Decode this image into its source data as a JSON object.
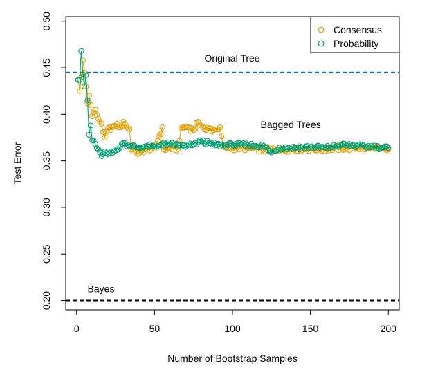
{
  "chart_data": {
    "type": "line",
    "title": "",
    "xlabel": "Number of Bootstrap Samples",
    "ylabel": "Test Error",
    "xlim": [
      -7,
      207
    ],
    "ylim": [
      0.19,
      0.505
    ],
    "x_ticks": [
      0,
      50,
      100,
      150,
      200
    ],
    "y_ticks": [
      0.2,
      0.25,
      0.3,
      0.35,
      0.4,
      0.45,
      0.5
    ],
    "x_tick_labels": [
      "0",
      "50",
      "100",
      "150",
      "200"
    ],
    "y_tick_labels": [
      "0.20",
      "0.25",
      "0.30",
      "0.35",
      "0.40",
      "0.45",
      "0.50"
    ],
    "grid": false,
    "legend_position": "top-right",
    "legend": [
      {
        "label": "Consensus",
        "color": "#E69F00"
      },
      {
        "label": "Probability",
        "color": "#009E73"
      }
    ],
    "reference_lines": [
      {
        "label": "Original Tree",
        "y": 0.445,
        "color": "#0072B2",
        "style": "dashed"
      },
      {
        "label": "Bayes",
        "y": 0.2,
        "color": "#000000",
        "style": "dashed"
      }
    ],
    "annotations": [
      {
        "text": "Bagged Trees",
        "x": 118,
        "y": 0.389
      }
    ],
    "series": [
      {
        "name": "Consensus",
        "color": "#E69F00",
        "marker": "open-circle",
        "keypoints": [
          [
            1,
            0.437
          ],
          [
            2,
            0.425
          ],
          [
            3,
            0.44
          ],
          [
            4,
            0.458
          ],
          [
            5,
            0.445
          ],
          [
            6,
            0.43
          ],
          [
            7,
            0.412
          ],
          [
            8,
            0.42
          ],
          [
            9,
            0.41
          ],
          [
            10,
            0.398
          ],
          [
            12,
            0.405
          ],
          [
            14,
            0.395
          ],
          [
            16,
            0.39
          ],
          [
            18,
            0.375
          ],
          [
            20,
            0.385
          ],
          [
            22,
            0.383
          ],
          [
            24,
            0.388
          ],
          [
            26,
            0.39
          ],
          [
            28,
            0.386
          ],
          [
            30,
            0.392
          ],
          [
            32,
            0.387
          ],
          [
            34,
            0.384
          ],
          [
            35,
            0.362
          ],
          [
            38,
            0.36
          ],
          [
            40,
            0.358
          ],
          [
            45,
            0.364
          ],
          [
            50,
            0.363
          ],
          [
            55,
            0.386
          ],
          [
            56,
            0.362
          ],
          [
            60,
            0.364
          ],
          [
            65,
            0.363
          ],
          [
            67,
            0.385
          ],
          [
            70,
            0.387
          ],
          [
            72,
            0.386
          ],
          [
            75,
            0.383
          ],
          [
            78,
            0.392
          ],
          [
            80,
            0.388
          ],
          [
            83,
            0.383
          ],
          [
            85,
            0.385
          ],
          [
            88,
            0.383
          ],
          [
            90,
            0.384
          ],
          [
            92,
            0.386
          ],
          [
            94,
            0.365
          ],
          [
            100,
            0.364
          ],
          [
            110,
            0.364
          ],
          [
            120,
            0.362
          ],
          [
            130,
            0.362
          ],
          [
            140,
            0.363
          ],
          [
            150,
            0.363
          ],
          [
            160,
            0.363
          ],
          [
            170,
            0.364
          ],
          [
            180,
            0.364
          ],
          [
            190,
            0.363
          ],
          [
            200,
            0.362
          ]
        ],
        "noise_amplitude": 0.003
      },
      {
        "name": "Probability",
        "color": "#009E73",
        "marker": "open-circle",
        "keypoints": [
          [
            1,
            0.437
          ],
          [
            2,
            0.437
          ],
          [
            3,
            0.468
          ],
          [
            4,
            0.443
          ],
          [
            5,
            0.43
          ],
          [
            6,
            0.442
          ],
          [
            7,
            0.415
          ],
          [
            8,
            0.378
          ],
          [
            9,
            0.388
          ],
          [
            10,
            0.372
          ],
          [
            12,
            0.368
          ],
          [
            14,
            0.362
          ],
          [
            16,
            0.355
          ],
          [
            18,
            0.36
          ],
          [
            20,
            0.357
          ],
          [
            22,
            0.36
          ],
          [
            25,
            0.361
          ],
          [
            28,
            0.365
          ],
          [
            30,
            0.369
          ],
          [
            35,
            0.366
          ],
          [
            40,
            0.364
          ],
          [
            45,
            0.366
          ],
          [
            50,
            0.365
          ],
          [
            55,
            0.368
          ],
          [
            60,
            0.368
          ],
          [
            65,
            0.367
          ],
          [
            70,
            0.365
          ],
          [
            75,
            0.368
          ],
          [
            80,
            0.371
          ],
          [
            85,
            0.369
          ],
          [
            90,
            0.367
          ],
          [
            100,
            0.367
          ],
          [
            110,
            0.367
          ],
          [
            120,
            0.366
          ],
          [
            125,
            0.359
          ],
          [
            130,
            0.364
          ],
          [
            140,
            0.364
          ],
          [
            150,
            0.365
          ],
          [
            160,
            0.364
          ],
          [
            170,
            0.367
          ],
          [
            180,
            0.366
          ],
          [
            190,
            0.365
          ],
          [
            200,
            0.364
          ]
        ],
        "noise_amplitude": 0.0022
      }
    ]
  }
}
